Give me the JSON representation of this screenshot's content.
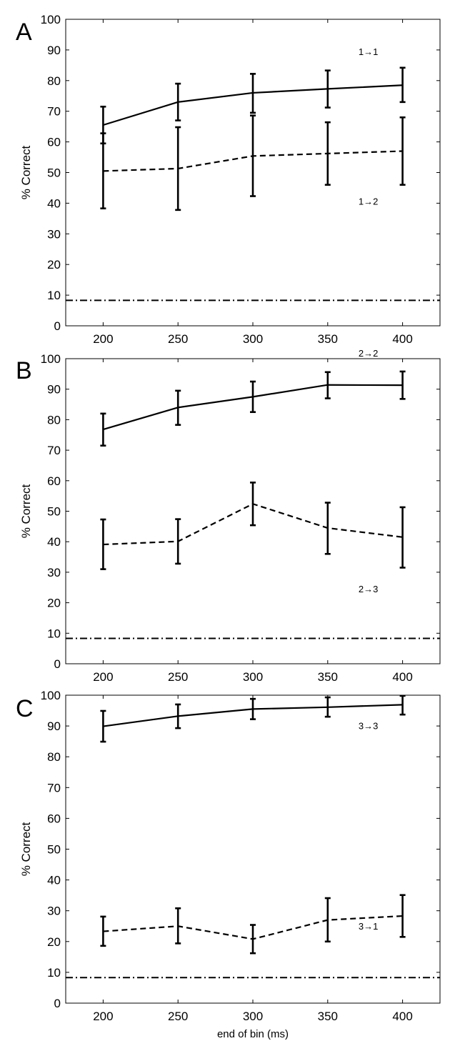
{
  "chart_data": [
    {
      "type": "line",
      "panel_label": "A",
      "ylabel": "% Correct",
      "xlabel": "",
      "xlim": [
        175,
        425
      ],
      "ylim": [
        0,
        100
      ],
      "x": [
        200,
        250,
        300,
        350,
        400
      ],
      "x_ticks": [
        "200",
        "250",
        "300",
        "350",
        "400"
      ],
      "y_ticks": [
        "0",
        "10",
        "20",
        "30",
        "40",
        "50",
        "60",
        "70",
        "80",
        "90",
        "100"
      ],
      "grid": false,
      "series": [
        {
          "name": "1→1",
          "style": "solid",
          "values": [
            65.5,
            73,
            76,
            77.3,
            78.5
          ],
          "err_low": [
            59.5,
            67,
            69.5,
            71.2,
            73
          ],
          "err_high": [
            71.5,
            79,
            82.2,
            83.3,
            84.2
          ]
        },
        {
          "name": "1→2",
          "style": "dashed",
          "values": [
            50.5,
            51.3,
            55.4,
            56.2,
            57
          ],
          "err_low": [
            38.3,
            37.8,
            42.3,
            46,
            46
          ],
          "err_high": [
            62.8,
            64.8,
            68.6,
            66.4,
            68
          ]
        }
      ],
      "chance_level": 8.3
    },
    {
      "type": "line",
      "panel_label": "B",
      "ylabel": "% Correct",
      "xlabel": "",
      "xlim": [
        175,
        425
      ],
      "ylim": [
        0,
        100
      ],
      "x": [
        200,
        250,
        300,
        350,
        400
      ],
      "x_ticks": [
        "200",
        "250",
        "300",
        "350",
        "400"
      ],
      "y_ticks": [
        "0",
        "10",
        "20",
        "30",
        "40",
        "50",
        "60",
        "70",
        "80",
        "90",
        "100"
      ],
      "grid": false,
      "series": [
        {
          "name": "2→2",
          "style": "solid",
          "values": [
            76.8,
            84,
            87.5,
            91.4,
            91.3
          ],
          "err_low": [
            71.5,
            78.3,
            82.5,
            87,
            86.8
          ],
          "err_high": [
            82,
            89.5,
            92.5,
            95.6,
            95.8
          ]
        },
        {
          "name": "2→3",
          "style": "dashed",
          "values": [
            39.1,
            40.1,
            52.4,
            44.5,
            41.5
          ],
          "err_low": [
            31,
            32.8,
            45.4,
            36,
            31.5
          ],
          "err_high": [
            47.3,
            47.4,
            59.4,
            52.8,
            51.3
          ]
        }
      ],
      "chance_level": 8.3
    },
    {
      "type": "line",
      "panel_label": "C",
      "ylabel": "% Correct",
      "xlabel": "end of bin (ms)",
      "xlim": [
        175,
        425
      ],
      "ylim": [
        0,
        100
      ],
      "x": [
        200,
        250,
        300,
        350,
        400
      ],
      "x_ticks": [
        "200",
        "250",
        "300",
        "350",
        "400"
      ],
      "y_ticks": [
        "0",
        "10",
        "20",
        "30",
        "40",
        "50",
        "60",
        "70",
        "80",
        "90",
        "100"
      ],
      "grid": false,
      "series": [
        {
          "name": "3→3",
          "style": "solid",
          "values": [
            89.9,
            93.2,
            95.5,
            96.1,
            96.9
          ],
          "err_low": [
            84.9,
            89.3,
            92.2,
            93,
            93.7
          ],
          "err_high": [
            94.9,
            97,
            98.8,
            99.3,
            99.8
          ]
        },
        {
          "name": "3→1",
          "style": "dashed",
          "values": [
            23.3,
            25,
            20.8,
            27,
            28.3
          ],
          "err_low": [
            18.6,
            19.4,
            16.2,
            20,
            21.5
          ],
          "err_high": [
            28.1,
            30.8,
            25.4,
            34.1,
            35.1
          ]
        }
      ],
      "chance_level": 8.3
    }
  ]
}
